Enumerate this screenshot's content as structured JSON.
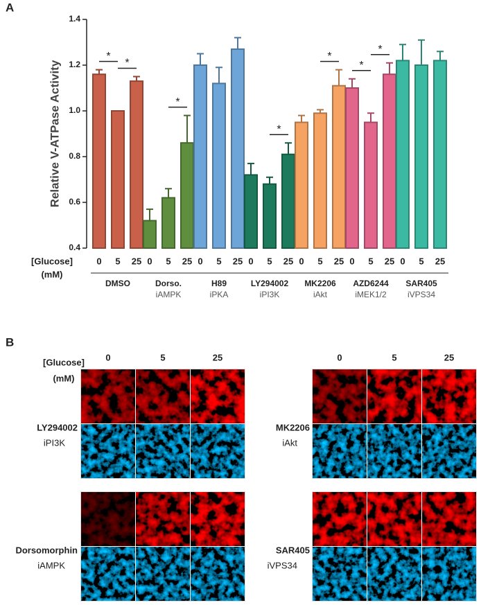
{
  "chart_data": {
    "type": "bar",
    "label": "A",
    "ylabel": "Relative V-ATPase Activity",
    "xlabel": [
      "[Glucose]",
      "(mM)"
    ],
    "categories": [
      "0",
      "5",
      "25"
    ],
    "ylim": [
      0.4,
      1.4
    ],
    "yticks": [
      0.4,
      0.6,
      0.8,
      {
        "value": 1.0,
        "label": "1.0"
      },
      1.2,
      1.4
    ],
    "groups": [
      {
        "name": "DMSO",
        "color": "#c8604a",
        "values": [
          1.16,
          1.0,
          1.13
        ],
        "errors": [
          0.02,
          0,
          0.02
        ],
        "significance": [
          {
            "label": "*",
            "between": [
              0,
              1
            ]
          },
          {
            "label": "*",
            "between": [
              1,
              2
            ]
          }
        ]
      },
      {
        "name": "Dorso.",
        "target": "iAMPK",
        "color": "#5f8f3e",
        "values": [
          0.52,
          0.62,
          0.86
        ],
        "errors": [
          0.05,
          0.04,
          0.12
        ],
        "significance": [
          {
            "label": "*",
            "between": [
              1,
              2
            ]
          }
        ]
      },
      {
        "name": "H89",
        "target": "iPKA",
        "color": "#6ea5d8",
        "values": [
          1.2,
          1.12,
          1.27
        ],
        "errors": [
          0.05,
          0.07,
          0.05
        ]
      },
      {
        "name": "LY294002",
        "target": "iPI3K",
        "color": "#1d7a5c",
        "values": [
          0.72,
          0.68,
          0.81
        ],
        "errors": [
          0.05,
          0.03,
          0.05
        ],
        "significance": [
          {
            "label": "*",
            "between": [
              1,
              2
            ]
          }
        ]
      },
      {
        "name": "MK2206",
        "target": "iAkt",
        "color": "#f5a262",
        "values": [
          0.95,
          0.99,
          1.11
        ],
        "errors": [
          0.03,
          0.015,
          0.07
        ],
        "significance": [
          {
            "label": "*",
            "between": [
              1,
              2
            ]
          }
        ]
      },
      {
        "name": "AZD6244",
        "target": "iMEK1/2",
        "color": "#e2668c",
        "values": [
          1.1,
          0.95,
          1.16
        ],
        "errors": [
          0.04,
          0.04,
          0.05
        ],
        "significance": [
          {
            "label": "*",
            "between": [
              0,
              1
            ]
          },
          {
            "label": "*",
            "between": [
              1,
              2
            ]
          }
        ]
      },
      {
        "name": "SAR405",
        "target": "iVPS34",
        "color": "#3cb9a2",
        "values": [
          1.22,
          1.2,
          1.22
        ],
        "errors": [
          0.07,
          0.11,
          0.04
        ]
      }
    ]
  },
  "panel_b": {
    "label": "B",
    "glucose_label": [
      "[Glucose]",
      "(mM)"
    ],
    "columns": [
      "0",
      "5",
      "25"
    ],
    "panels": [
      {
        "drug": "LY294002",
        "target": "iPI3K"
      },
      {
        "drug": "MK2206",
        "target": "iAkt"
      },
      {
        "drug": "Dorsomorphin",
        "target": "iAMPK"
      },
      {
        "drug": "SAR405",
        "target": "iVPS34"
      }
    ]
  }
}
